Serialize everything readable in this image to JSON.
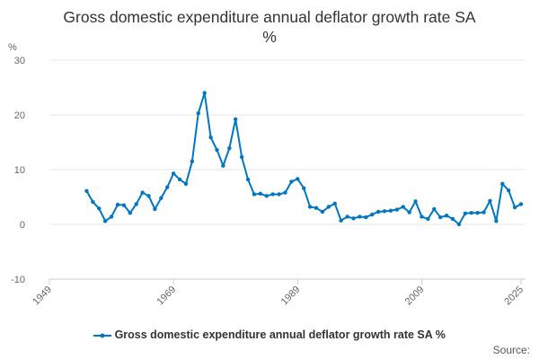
{
  "chart_data": {
    "type": "line",
    "title": "Gross domestic expenditure annual deflator growth rate SA",
    "subtitle": "%",
    "ylabel": "%",
    "xlabel": "",
    "xlim": [
      1949,
      2025
    ],
    "ylim": [
      -10,
      30
    ],
    "yticks": [
      "-10",
      "0",
      "10",
      "20",
      "30"
    ],
    "xticks": [
      "1949",
      "1969",
      "1989",
      "2009",
      "2025"
    ],
    "grid": true,
    "legend_position": "bottom",
    "color": "#0077c0",
    "series": [
      {
        "name": "Gross domestic expenditure annual deflator growth rate SA %",
        "x": [
          1955,
          1956,
          1957,
          1958,
          1959,
          1960,
          1961,
          1962,
          1963,
          1964,
          1965,
          1966,
          1967,
          1968,
          1969,
          1970,
          1971,
          1972,
          1973,
          1974,
          1975,
          1976,
          1977,
          1978,
          1979,
          1980,
          1981,
          1982,
          1983,
          1984,
          1985,
          1986,
          1987,
          1988,
          1989,
          1990,
          1991,
          1992,
          1993,
          1994,
          1995,
          1996,
          1997,
          1998,
          1999,
          2000,
          2001,
          2002,
          2003,
          2004,
          2005,
          2006,
          2007,
          2008,
          2009,
          2010,
          2011,
          2012,
          2013,
          2014,
          2015,
          2016,
          2017,
          2018,
          2019,
          2020,
          2021,
          2022,
          2023,
          2024,
          2025
        ],
        "values": [
          6.1,
          4.1,
          2.9,
          0.6,
          1.4,
          3.6,
          3.5,
          2.1,
          3.7,
          5.8,
          5.2,
          2.8,
          4.8,
          6.8,
          9.3,
          8.2,
          7.4,
          11.5,
          20.3,
          24.0,
          15.9,
          13.6,
          10.7,
          13.9,
          19.2,
          12.3,
          8.2,
          5.5,
          5.6,
          5.2,
          5.5,
          5.5,
          5.8,
          7.8,
          8.3,
          6.6,
          3.2,
          3.0,
          2.3,
          3.2,
          3.8,
          0.7,
          1.4,
          1.1,
          1.4,
          1.3,
          1.8,
          2.3,
          2.4,
          2.5,
          2.7,
          3.2,
          2.2,
          4.2,
          1.4,
          1.0,
          2.8,
          1.3,
          1.6,
          1.0,
          0.0,
          2.0,
          2.1,
          2.1,
          2.2,
          4.3,
          0.6,
          7.4,
          6.2,
          3.1,
          3.7
        ]
      }
    ]
  },
  "source_label": "Source:"
}
